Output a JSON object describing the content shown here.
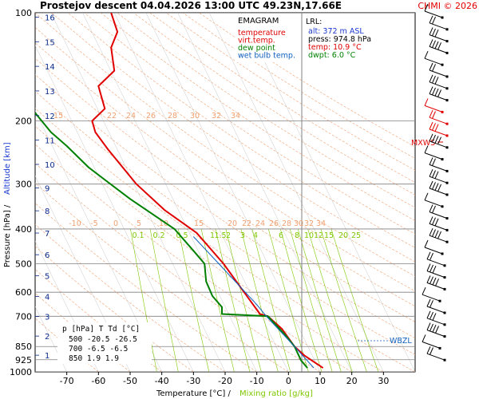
{
  "header": {
    "title": "Prostejov  descent  04.04.2026 13:00 UTC  49.23N,17.66E",
    "copyright": "CHMI © 2026"
  },
  "axes": {
    "ylabel_pressure": "Pressure [hPa]  /",
    "ylabel_altitude": "Altitude [km]",
    "xlabel_temp": "Temperature [°C]  /",
    "xlabel_mixing": "Mixing ratio [g/kg]",
    "pressure_ticks": [
      "100",
      "200",
      "300",
      "400",
      "500",
      "600",
      "700",
      "850",
      "925",
      "1000"
    ],
    "temp_ticks": [
      "-70",
      "-60",
      "-50",
      "-40",
      "-30",
      "-20",
      "-10",
      "0",
      "10",
      "20",
      "30"
    ],
    "altitude_ticks": [
      "1",
      "2",
      "3",
      "4",
      "5",
      "6",
      "7",
      "8",
      "9",
      "10",
      "11",
      "12",
      "13",
      "14",
      "15",
      "16"
    ]
  },
  "legend": {
    "title": "EMAGRAM",
    "items": [
      {
        "label": "temperature",
        "color": "#e00000"
      },
      {
        "label": "virt.temp.",
        "color": "#e00000"
      },
      {
        "label": "dew point",
        "color": "#008000"
      },
      {
        "label": "wet bulb temp.",
        "color": "#1060c0"
      }
    ]
  },
  "lrl": {
    "title": "LRL:",
    "alt": "alt: 372 m ASL",
    "press": "press: 974.8 hPa",
    "temp": "temp: 10.9 °C",
    "dwpt": "dwpt: 6.0 °C"
  },
  "table": {
    "header": "p [hPa]   T      Td [°C]",
    "rows": [
      "500   -20.5   -26.5",
      "700    -6.5    -6.5",
      "850     1.9     1.9"
    ]
  },
  "markers": {
    "mxws": "MXWS",
    "wbzl": "WBZL"
  },
  "mixing_ratio_labels": [
    "0.1",
    "0.2",
    "0.5",
    "1",
    "1.5",
    "2",
    "3",
    "4",
    "6",
    "8",
    "10",
    "12",
    "15",
    "20",
    "25"
  ],
  "dry_adiabat_labels_lower": [
    "-10",
    "-5",
    "0",
    "5",
    "10",
    "15",
    "20",
    "22",
    "24",
    "26",
    "28",
    "30",
    "32",
    "34"
  ],
  "dry_adiabat_labels_upper": [
    "15",
    "22",
    "24",
    "26",
    "28",
    "30",
    "32",
    "34"
  ],
  "colors": {
    "temperature": "#e00000",
    "dewpoint": "#008000",
    "wetbulb": "#1060c0",
    "dry_adiabat": "#f0a070",
    "mixing_ratio": "#7ec800",
    "grid": "#808080"
  },
  "chart_data": {
    "type": "line",
    "title": "Prostejov  descent  04.04.2026 13:00 UTC  49.23N,17.66E",
    "xlabel": "Temperature [°C]  /  Mixing ratio [g/kg]",
    "ylabel": "Pressure [hPa]  /  Altitude [km]",
    "xlim": [
      -80,
      40
    ],
    "ylim": [
      1000,
      100
    ],
    "y_scale": "log",
    "series": [
      {
        "name": "temperature",
        "points": [
          [
            10.9,
            975
          ],
          [
            5,
            900
          ],
          [
            1.9,
            850
          ],
          [
            -2,
            760
          ],
          [
            -6.5,
            700
          ],
          [
            -9,
            690
          ],
          [
            -14,
            600
          ],
          [
            -20.5,
            500
          ],
          [
            -29,
            410
          ],
          [
            -39,
            355
          ],
          [
            -48,
            300
          ],
          [
            -57,
            240
          ],
          [
            -61,
            215
          ],
          [
            -62,
            200
          ],
          [
            -58,
            185
          ],
          [
            -60,
            160
          ],
          [
            -55,
            145
          ],
          [
            -56,
            125
          ],
          [
            -54,
            113
          ],
          [
            -56,
            100
          ]
        ]
      },
      {
        "name": "dew point",
        "points": [
          [
            6.0,
            975
          ],
          [
            4,
            930
          ],
          [
            1.9,
            850
          ],
          [
            -1,
            790
          ],
          [
            -6.5,
            700
          ],
          [
            -21,
            690
          ],
          [
            -21,
            660
          ],
          [
            -24,
            615
          ],
          [
            -26,
            560
          ],
          [
            -26.5,
            500
          ],
          [
            -30,
            460
          ],
          [
            -36,
            400
          ],
          [
            -50,
            330
          ],
          [
            -63,
            270
          ],
          [
            -70,
            235
          ],
          [
            -75,
            215
          ],
          [
            -80,
            190
          ]
        ]
      },
      {
        "name": "wet bulb temp.",
        "points": [
          [
            8,
            975
          ],
          [
            1.9,
            850
          ],
          [
            -7,
            700
          ],
          [
            -10,
            650
          ],
          [
            -16,
            570
          ],
          [
            -22,
            500
          ],
          [
            -30,
            420
          ]
        ]
      }
    ],
    "table": [
      {
        "p": 500,
        "T": -20.5,
        "Td": -26.5
      },
      {
        "p": 700,
        "T": -6.5,
        "Td": -6.5
      },
      {
        "p": 850,
        "T": 1.9,
        "Td": 1.9
      }
    ]
  }
}
